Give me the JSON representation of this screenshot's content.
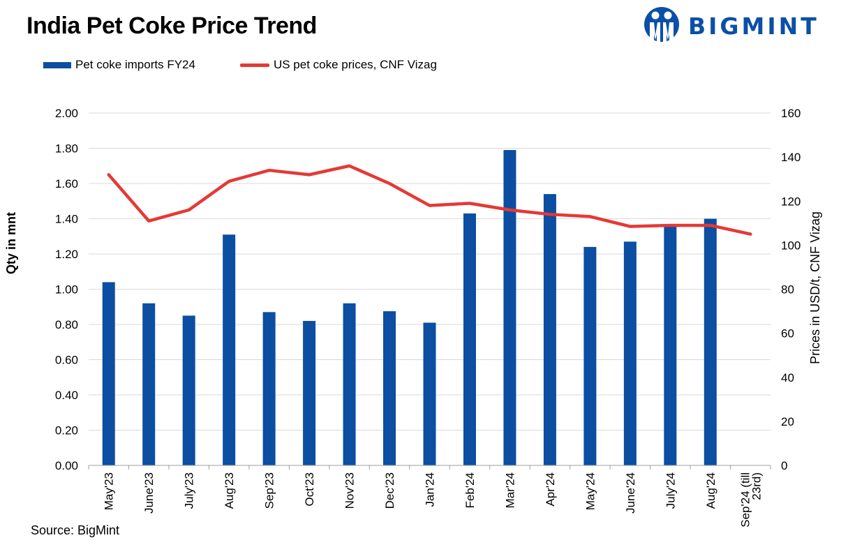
{
  "title": "India Pet Coke Price Trend",
  "brand": {
    "name": "BIGMINT",
    "color": "#0b4fa8"
  },
  "legend": {
    "bars_label": "Pet coke imports FY24",
    "line_label": "US pet coke prices, CNF Vizag"
  },
  "source": "Source: BigMint",
  "chart_data": {
    "type": "bar+line",
    "title": "India Pet Coke Price Trend",
    "categories": [
      "May'23",
      "June'23",
      "July'23",
      "Aug'23",
      "Sep'23",
      "Oct'23",
      "Nov'23",
      "Dec'23",
      "Jan'24",
      "Feb'24",
      "Mar'24",
      "Apr'24",
      "May'24",
      "June'24",
      "July'24",
      "Aug'24",
      "Sep'24 (till 23rd)"
    ],
    "category_lines": [
      [
        "May'23"
      ],
      [
        "June'23"
      ],
      [
        "July'23"
      ],
      [
        "Aug'23"
      ],
      [
        "Sep'23"
      ],
      [
        "Oct'23"
      ],
      [
        "Nov'23"
      ],
      [
        "Dec'23"
      ],
      [
        "Jan'24"
      ],
      [
        "Feb'24"
      ],
      [
        "Mar'24"
      ],
      [
        "Apr'24"
      ],
      [
        "May'24"
      ],
      [
        "June'24"
      ],
      [
        "July'24"
      ],
      [
        "Aug'24"
      ],
      [
        "Sep'24 (till",
        "23rd)"
      ]
    ],
    "series": [
      {
        "name": "Pet coke imports FY24",
        "type": "bar",
        "axis": "left",
        "color": "#0b4ea2",
        "values": [
          1.04,
          0.92,
          0.85,
          1.31,
          0.87,
          0.82,
          0.92,
          0.875,
          0.81,
          1.43,
          1.79,
          1.54,
          1.24,
          1.27,
          1.37,
          1.4,
          null
        ]
      },
      {
        "name": "US pet coke prices, CNF Vizag",
        "type": "line",
        "axis": "right",
        "color": "#e53935",
        "values": [
          132,
          111,
          116,
          129,
          134,
          132,
          136,
          128,
          118,
          119,
          116,
          114,
          113,
          108.5,
          109,
          109,
          105
        ]
      }
    ],
    "y_left": {
      "label": "Qty in mnt",
      "min": 0,
      "max": 2.0,
      "step": 0.2,
      "decimals": 2
    },
    "y_right": {
      "label": "Prices in USD/t, CNF Vizag",
      "min": 0,
      "max": 160,
      "step": 20
    },
    "grid": true,
    "legend_position": "top-left"
  }
}
